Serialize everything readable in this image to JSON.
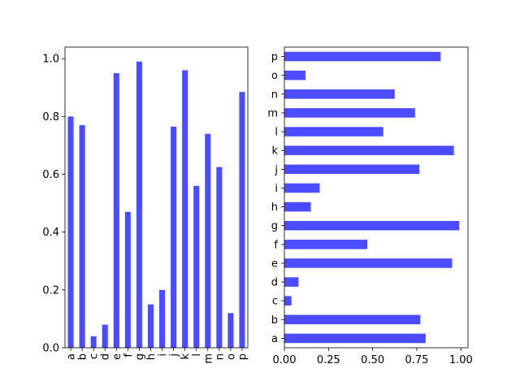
{
  "chart_data": [
    {
      "type": "bar",
      "orientation": "vertical",
      "categories": [
        "a",
        "b",
        "c",
        "d",
        "e",
        "f",
        "g",
        "h",
        "i",
        "j",
        "k",
        "l",
        "m",
        "n",
        "o",
        "p"
      ],
      "values": [
        0.8,
        0.77,
        0.04,
        0.08,
        0.95,
        0.47,
        0.99,
        0.15,
        0.2,
        0.765,
        0.96,
        0.56,
        0.74,
        0.625,
        0.12,
        0.885
      ],
      "ylim": [
        0,
        1.04
      ],
      "yticks": [
        "0.0",
        "0.2",
        "0.4",
        "0.6",
        "0.8",
        "1.0"
      ],
      "color": "#4b4bff",
      "grid": false
    },
    {
      "type": "bar",
      "orientation": "horizontal",
      "categories": [
        "a",
        "b",
        "c",
        "d",
        "e",
        "f",
        "g",
        "h",
        "i",
        "j",
        "k",
        "l",
        "m",
        "n",
        "o",
        "p"
      ],
      "values": [
        0.8,
        0.77,
        0.04,
        0.08,
        0.95,
        0.47,
        0.99,
        0.15,
        0.2,
        0.765,
        0.96,
        0.56,
        0.74,
        0.625,
        0.12,
        0.885
      ],
      "xlim": [
        0,
        1.04
      ],
      "xticks": [
        "0.00",
        "0.25",
        "0.50",
        "0.75",
        "1.00"
      ],
      "color": "#4b4bff",
      "grid": false
    }
  ]
}
